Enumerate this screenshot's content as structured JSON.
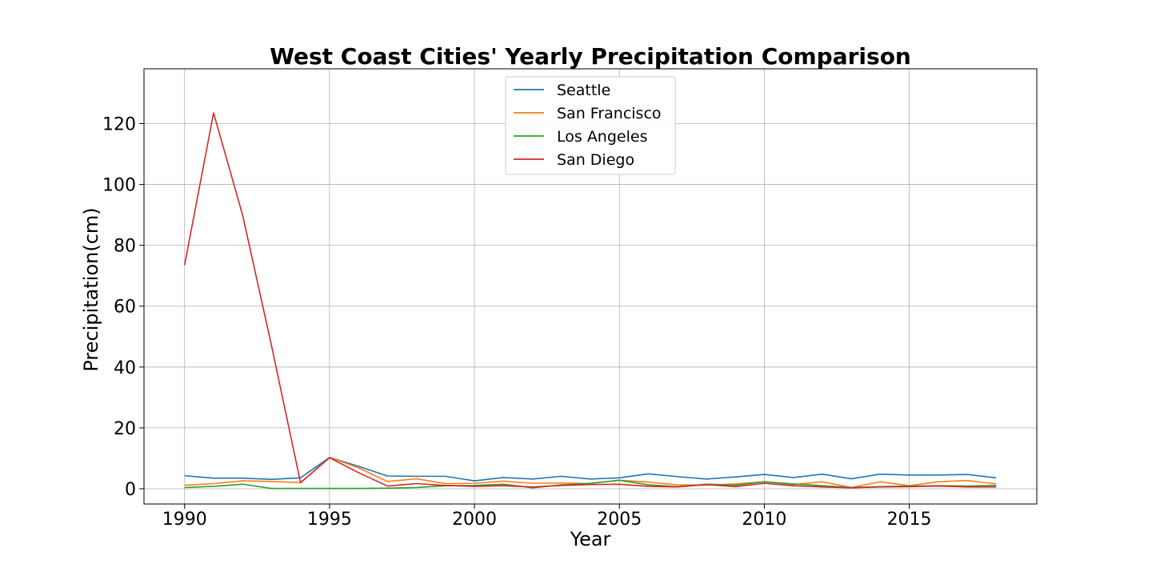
{
  "chart_data": {
    "type": "line",
    "title": "West Coast Cities' Yearly Precipitation Comparison",
    "xlabel": "Year",
    "ylabel": "Precipitation(cm)",
    "xlim": [
      1988.6,
      2019.4
    ],
    "ylim": [
      -5,
      138
    ],
    "x_ticks": [
      1990,
      1995,
      2000,
      2005,
      2010,
      2015
    ],
    "y_ticks": [
      0,
      20,
      40,
      60,
      80,
      100,
      120
    ],
    "grid": true,
    "legend_position": "upper center",
    "x": [
      1990,
      1991,
      1992,
      1993,
      1994,
      1995,
      1996,
      1997,
      1998,
      1999,
      2000,
      2001,
      2002,
      2003,
      2004,
      2005,
      2006,
      2007,
      2008,
      2009,
      2010,
      2011,
      2012,
      2013,
      2014,
      2015,
      2016,
      2017,
      2018
    ],
    "series": [
      {
        "name": "Seattle",
        "color": "#1f77b4",
        "values": [
          4.3,
          3.5,
          3.5,
          3.1,
          3.6,
          10.3,
          7.4,
          4.2,
          4.1,
          4.1,
          2.6,
          3.7,
          3.2,
          4.1,
          3.2,
          3.6,
          4.9,
          4.0,
          3.2,
          3.9,
          4.7,
          3.7,
          4.8,
          3.3,
          4.8,
          4.5,
          4.5,
          4.7,
          3.6
        ]
      },
      {
        "name": "San Francisco",
        "color": "#ff7f0e",
        "values": [
          1.2,
          1.7,
          2.6,
          2.4,
          2.0,
          10.3,
          6.9,
          2.4,
          3.3,
          1.7,
          1.8,
          2.5,
          1.8,
          1.9,
          1.7,
          2.8,
          2.2,
          1.3,
          1.2,
          1.6,
          2.3,
          1.4,
          2.3,
          0.4,
          2.3,
          1.0,
          2.3,
          2.7,
          1.6
        ]
      },
      {
        "name": "Los Angeles",
        "color": "#2ca02c",
        "values": [
          0.4,
          0.8,
          1.5,
          0.1,
          0.1,
          0.1,
          0.1,
          0.2,
          0.4,
          1.0,
          1.1,
          1.5,
          0.3,
          1.3,
          1.8,
          2.8,
          1.3,
          0.7,
          1.5,
          1.2,
          2.3,
          1.6,
          1.0,
          0.4,
          0.7,
          0.9,
          1.0,
          0.9,
          1.1
        ]
      },
      {
        "name": "San Diego",
        "color": "#d62728",
        "values": [
          73.5,
          123.5,
          90.0,
          47.0,
          2.0,
          10.2,
          5.3,
          0.9,
          1.7,
          1.1,
          0.8,
          1.0,
          0.6,
          1.1,
          1.4,
          1.5,
          0.8,
          0.6,
          1.4,
          0.7,
          1.8,
          1.0,
          0.6,
          0.3,
          0.6,
          0.7,
          0.9,
          0.6,
          0.6
        ]
      }
    ]
  }
}
